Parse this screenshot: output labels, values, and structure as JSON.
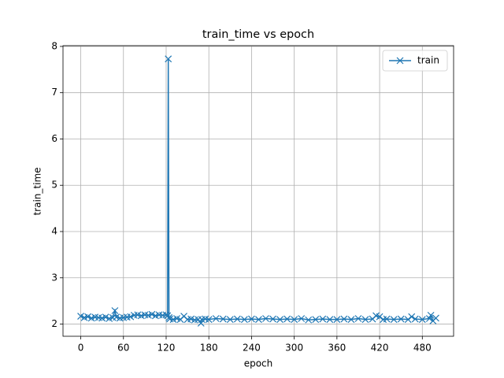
{
  "chart_data": {
    "type": "line",
    "title": "train_time vs epoch",
    "xlabel": "epoch",
    "ylabel": "train_time",
    "x": [
      0,
      5,
      10,
      15,
      20,
      25,
      30,
      35,
      40,
      45,
      48,
      50,
      55,
      60,
      65,
      70,
      75,
      80,
      85,
      90,
      95,
      100,
      105,
      110,
      115,
      120,
      122,
      123,
      124,
      125,
      130,
      135,
      140,
      145,
      150,
      155,
      160,
      165,
      169,
      170,
      175,
      180,
      190,
      200,
      210,
      220,
      230,
      240,
      250,
      260,
      270,
      280,
      290,
      300,
      310,
      320,
      330,
      340,
      350,
      360,
      370,
      380,
      390,
      400,
      410,
      415,
      420,
      425,
      430,
      440,
      450,
      460,
      465,
      470,
      480,
      490,
      492,
      495,
      499
    ],
    "series": [
      {
        "name": "train",
        "color": "#1f77b4",
        "marker": "x",
        "values": [
          2.17,
          2.14,
          2.16,
          2.13,
          2.15,
          2.14,
          2.13,
          2.15,
          2.12,
          2.14,
          2.29,
          2.15,
          2.13,
          2.14,
          2.15,
          2.16,
          2.19,
          2.2,
          2.18,
          2.2,
          2.19,
          2.21,
          2.18,
          2.2,
          2.19,
          2.2,
          2.18,
          7.73,
          2.14,
          2.11,
          2.1,
          2.12,
          2.1,
          2.17,
          2.1,
          2.11,
          2.09,
          2.1,
          2.02,
          2.1,
          2.11,
          2.1,
          2.12,
          2.11,
          2.1,
          2.11,
          2.1,
          2.11,
          2.1,
          2.12,
          2.11,
          2.1,
          2.11,
          2.1,
          2.12,
          2.09,
          2.1,
          2.11,
          2.1,
          2.1,
          2.11,
          2.1,
          2.12,
          2.1,
          2.11,
          2.18,
          2.16,
          2.1,
          2.11,
          2.1,
          2.11,
          2.1,
          2.16,
          2.11,
          2.1,
          2.12,
          2.19,
          2.07,
          2.13
        ]
      }
    ],
    "xlim": [
      -24.95,
      523.95
    ],
    "ylim": [
      1.737,
      8.016
    ],
    "xticks": [
      0,
      60,
      120,
      180,
      240,
      300,
      360,
      420,
      480
    ],
    "yticks": [
      2,
      3,
      4,
      5,
      6,
      7,
      8
    ],
    "grid": true,
    "legend": "upper right"
  }
}
